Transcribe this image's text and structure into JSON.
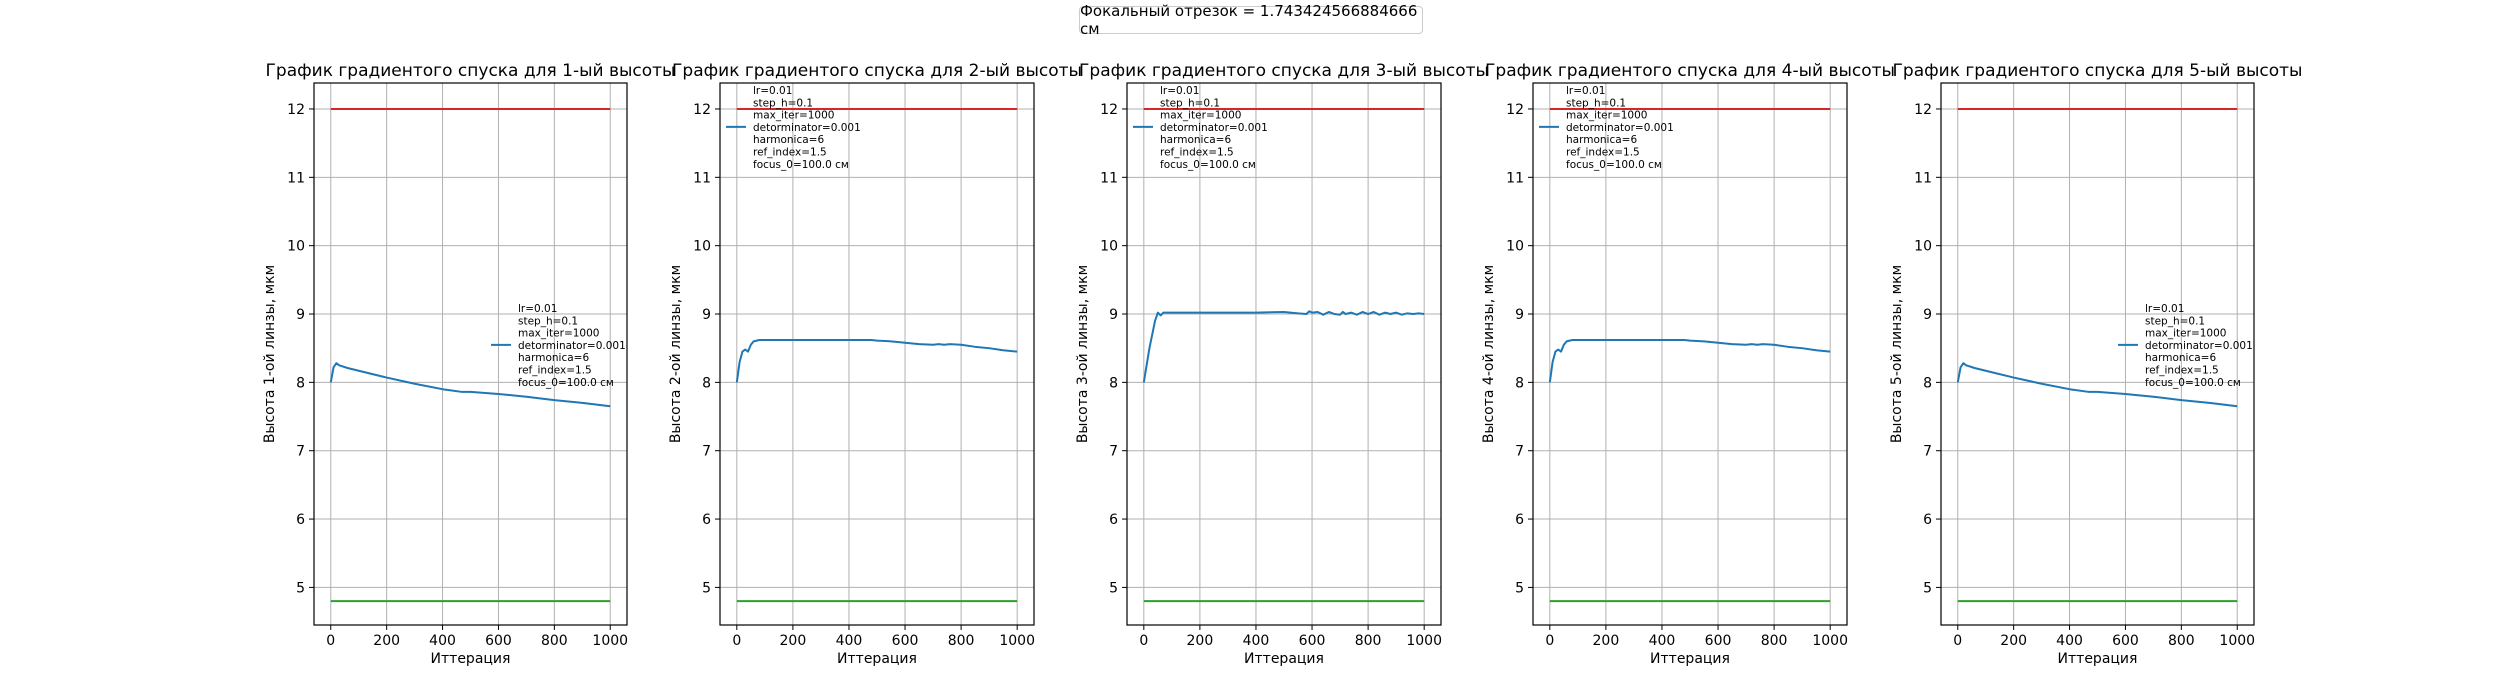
{
  "figure": {
    "suptitle": "Фокальный отрезок = 1.743424566884666 см"
  },
  "colors": {
    "series": "#1f77b4",
    "upper_bound": "#d62728",
    "lower_bound": "#2ca02c",
    "grid": "#b0b0b0"
  },
  "chart_data": [
    {
      "type": "line",
      "title": "График градиентого спуска для 1-ый высоты",
      "xlabel": "Иттерация",
      "ylabel": "Высота 1-ой линзы, мкм",
      "xlim": [
        -60,
        1060
      ],
      "ylim": [
        4.45,
        12.38
      ],
      "xticks": [
        0,
        200,
        400,
        600,
        800,
        1000
      ],
      "yticks": [
        5,
        6,
        7,
        8,
        9,
        10,
        11,
        12
      ],
      "grid": true,
      "legend_position": "center-right",
      "legend_lines": [
        "lr=0.01",
        "step_h=0.1",
        "max_iter=1000",
        "detorminator=0.001",
        "harmonica=6",
        "ref_index=1.5",
        "focus_0=100.0 см"
      ],
      "hlines": [
        {
          "y": 12.0,
          "color": "red"
        },
        {
          "y": 4.8,
          "color": "green"
        }
      ],
      "series": [
        {
          "x": [
            0,
            10,
            20,
            30,
            60,
            100,
            200,
            300,
            400,
            470,
            500,
            600,
            700,
            800,
            900,
            1000
          ],
          "y": [
            8.0,
            8.22,
            8.28,
            8.25,
            8.21,
            8.17,
            8.07,
            7.98,
            7.9,
            7.86,
            7.86,
            7.83,
            7.79,
            7.74,
            7.7,
            7.65
          ]
        }
      ]
    },
    {
      "type": "line",
      "title": "График градиентого спуска для 2-ый высоты",
      "xlabel": "Иттерация",
      "ylabel": "Высота 2-ой линзы, мкм",
      "xlim": [
        -60,
        1060
      ],
      "ylim": [
        4.45,
        12.38
      ],
      "xticks": [
        0,
        200,
        400,
        600,
        800,
        1000
      ],
      "yticks": [
        5,
        6,
        7,
        8,
        9,
        10,
        11,
        12
      ],
      "grid": true,
      "legend_position": "top-left",
      "legend_lines": [
        "lr=0.01",
        "step_h=0.1",
        "max_iter=1000",
        "detorminator=0.001",
        "harmonica=6",
        "ref_index=1.5",
        "focus_0=100.0 см"
      ],
      "hlines": [
        {
          "y": 12.0,
          "color": "red"
        },
        {
          "y": 4.8,
          "color": "green"
        }
      ],
      "series": [
        {
          "x": [
            0,
            10,
            20,
            30,
            40,
            50,
            60,
            80,
            100,
            200,
            300,
            400,
            480,
            500,
            550,
            600,
            650,
            700,
            720,
            740,
            760,
            800,
            850,
            900,
            950,
            1000
          ],
          "y": [
            8.0,
            8.3,
            8.45,
            8.48,
            8.45,
            8.55,
            8.6,
            8.62,
            8.62,
            8.62,
            8.62,
            8.62,
            8.62,
            8.61,
            8.6,
            8.58,
            8.56,
            8.55,
            8.56,
            8.55,
            8.56,
            8.55,
            8.52,
            8.5,
            8.47,
            8.45
          ]
        }
      ]
    },
    {
      "type": "line",
      "title": "График градиентого спуска для 3-ый высоты",
      "xlabel": "Иттерация",
      "ylabel": "Высота 3-ой линзы, мкм",
      "xlim": [
        -60,
        1060
      ],
      "ylim": [
        4.45,
        12.38
      ],
      "xticks": [
        0,
        200,
        400,
        600,
        800,
        1000
      ],
      "yticks": [
        5,
        6,
        7,
        8,
        9,
        10,
        11,
        12
      ],
      "grid": true,
      "legend_position": "top-left",
      "legend_lines": [
        "lr=0.01",
        "step_h=0.1",
        "max_iter=1000",
        "detorminator=0.001",
        "harmonica=6",
        "ref_index=1.5",
        "focus_0=100.0 см"
      ],
      "hlines": [
        {
          "y": 12.0,
          "color": "red"
        },
        {
          "y": 4.8,
          "color": "green"
        }
      ],
      "series": [
        {
          "x": [
            0,
            20,
            40,
            50,
            60,
            70,
            80,
            100,
            200,
            300,
            400,
            500,
            550,
            580,
            590,
            600,
            620,
            640,
            660,
            680,
            700,
            710,
            720,
            740,
            760,
            780,
            800,
            820,
            840,
            860,
            880,
            900,
            920,
            940,
            960,
            980,
            1000
          ],
          "y": [
            8.0,
            8.5,
            8.9,
            9.02,
            8.98,
            9.02,
            9.02,
            9.02,
            9.02,
            9.02,
            9.02,
            9.03,
            9.01,
            9.0,
            9.04,
            9.02,
            9.03,
            8.99,
            9.03,
            9.0,
            8.99,
            9.03,
            9.0,
            9.02,
            8.99,
            9.03,
            9.0,
            9.03,
            8.99,
            9.02,
            9.0,
            9.02,
            8.99,
            9.01,
            9.0,
            9.01,
            9.0
          ]
        }
      ]
    },
    {
      "type": "line",
      "title": "График градиентого спуска для 4-ый высоты",
      "xlabel": "Иттерация",
      "ylabel": "Высота 4-ой линзы, мкм",
      "xlim": [
        -60,
        1060
      ],
      "ylim": [
        4.45,
        12.38
      ],
      "xticks": [
        0,
        200,
        400,
        600,
        800,
        1000
      ],
      "yticks": [
        5,
        6,
        7,
        8,
        9,
        10,
        11,
        12
      ],
      "grid": true,
      "legend_position": "top-left",
      "legend_lines": [
        "lr=0.01",
        "step_h=0.1",
        "max_iter=1000",
        "detorminator=0.001",
        "harmonica=6",
        "ref_index=1.5",
        "focus_0=100.0 см"
      ],
      "hlines": [
        {
          "y": 12.0,
          "color": "red"
        },
        {
          "y": 4.8,
          "color": "green"
        }
      ],
      "series": [
        {
          "x": [
            0,
            10,
            20,
            30,
            40,
            50,
            60,
            80,
            100,
            200,
            300,
            400,
            480,
            500,
            550,
            600,
            650,
            700,
            720,
            740,
            760,
            800,
            850,
            900,
            950,
            1000
          ],
          "y": [
            8.0,
            8.3,
            8.45,
            8.48,
            8.45,
            8.55,
            8.6,
            8.62,
            8.62,
            8.62,
            8.62,
            8.62,
            8.62,
            8.61,
            8.6,
            8.58,
            8.56,
            8.55,
            8.56,
            8.55,
            8.56,
            8.55,
            8.52,
            8.5,
            8.47,
            8.45
          ]
        }
      ]
    },
    {
      "type": "line",
      "title": "График градиентого спуска для 5-ый высоты",
      "xlabel": "Иттерация",
      "ylabel": "Высота 5-ой линзы, мкм",
      "xlim": [
        -60,
        1060
      ],
      "ylim": [
        4.45,
        12.38
      ],
      "xticks": [
        0,
        200,
        400,
        600,
        800,
        1000
      ],
      "yticks": [
        5,
        6,
        7,
        8,
        9,
        10,
        11,
        12
      ],
      "grid": true,
      "legend_position": "center-right",
      "legend_lines": [
        "lr=0.01",
        "step_h=0.1",
        "max_iter=1000",
        "detorminator=0.001",
        "harmonica=6",
        "ref_index=1.5",
        "focus_0=100.0 см"
      ],
      "hlines": [
        {
          "y": 12.0,
          "color": "red"
        },
        {
          "y": 4.8,
          "color": "green"
        }
      ],
      "series": [
        {
          "x": [
            0,
            10,
            20,
            30,
            60,
            100,
            200,
            300,
            400,
            470,
            500,
            600,
            700,
            800,
            900,
            1000
          ],
          "y": [
            8.0,
            8.22,
            8.28,
            8.25,
            8.21,
            8.17,
            8.07,
            7.98,
            7.9,
            7.86,
            7.86,
            7.83,
            7.79,
            7.74,
            7.7,
            7.65
          ]
        }
      ]
    }
  ]
}
